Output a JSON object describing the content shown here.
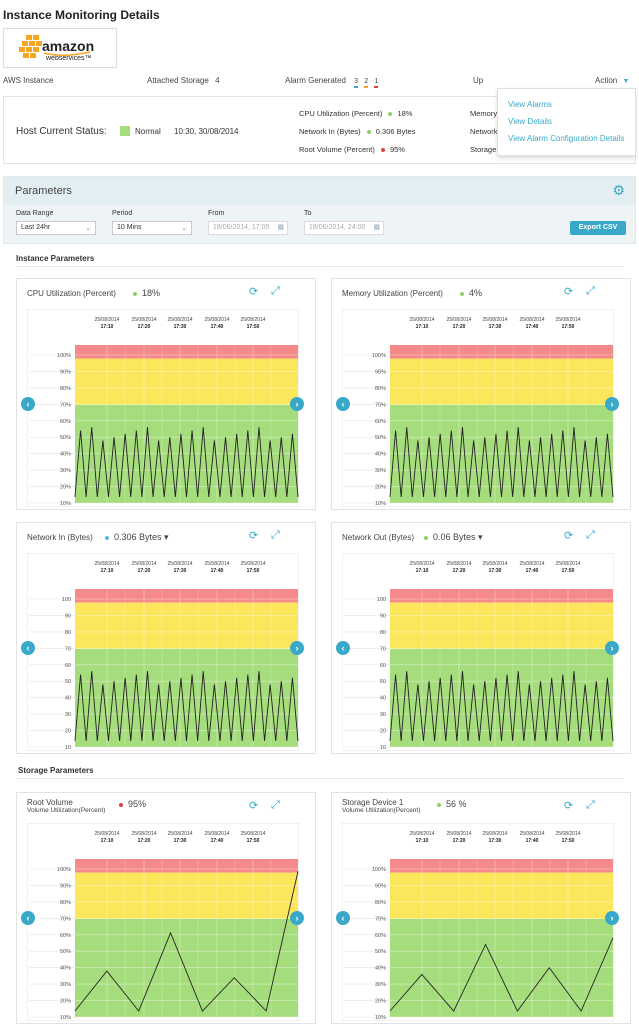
{
  "page_title": "Instance Monitoring Details",
  "logo": {
    "line1": "amazon",
    "line2": "webservices™"
  },
  "info": {
    "instance": "AWS Instance",
    "storage_label": "Attached Storage",
    "storage_count": "4",
    "alarm_label": "Alarm Generated",
    "alarm_counts": [
      "3",
      "2",
      "1"
    ],
    "alarm_colors": [
      "#3aa9c9",
      "#f0a030",
      "#e04040"
    ],
    "up": "Up",
    "action": "Action"
  },
  "action_menu": [
    "View Alarms",
    "View Details",
    "View Alarm Configuration Details"
  ],
  "status": {
    "label": "Host Current Status:",
    "state": "Normal",
    "state_color": "#8fe07a",
    "time": "10:30, 30/08/2014",
    "metrics": [
      {
        "name": "CPU Utilization (Percent)",
        "value": "18%",
        "color": "#8fd16a"
      },
      {
        "name": "Network In (Bytes)",
        "value": "0.306 Bytes",
        "color": "#8fd16a"
      },
      {
        "name": "Root Volume (Percent)",
        "value": "95%",
        "color": "#e04040"
      }
    ],
    "metrics2": [
      "Memory",
      "Network",
      "Storage"
    ]
  },
  "parameters": {
    "title": "Parameters",
    "date_range_label": "Data Range",
    "date_range_value": "Last 24hr",
    "period_label": "Period",
    "period_value": "10 Mins",
    "from_label": "From",
    "from_value": "18/06/2014, 17:05",
    "to_label": "To",
    "to_value": "18/06/2014, 24:00",
    "export_label": "Export CSV"
  },
  "instance_section": "Instance Parameters",
  "storage_section": "Storage Parameters",
  "time_labels": [
    {
      "date": "25/08/2014",
      "time": "17:10"
    },
    {
      "date": "25/08/2014",
      "time": "17:20"
    },
    {
      "date": "25/08/2014",
      "time": "17:30"
    },
    {
      "date": "25/08/2014",
      "time": "17:40"
    },
    {
      "date": "25/08/2014",
      "time": "17:50"
    }
  ],
  "zone_colors": {
    "red": "#f48a8a",
    "yellow": "#fbe65c",
    "green": "#a6dd7c"
  },
  "panels": [
    {
      "title": "CPU Utilization (Percent)",
      "subtitle": "",
      "value": "18%",
      "dropdown": false,
      "dot": "#8fd16a",
      "ylabels": [
        "100%",
        "90%",
        "80%",
        "70%",
        "60%",
        "50%",
        "40%",
        "30%",
        "20%",
        "10%"
      ],
      "pattern": "zig"
    },
    {
      "title": "Memory Utilization (Percent)",
      "subtitle": "",
      "value": "4%",
      "dropdown": false,
      "dot": "#8fd16a",
      "ylabels": [
        "100%",
        "90%",
        "80%",
        "70%",
        "60%",
        "50%",
        "40%",
        "30%",
        "20%",
        "10%"
      ],
      "pattern": "zig"
    },
    {
      "title": "Network In (Bytes)",
      "subtitle": "",
      "value": "0.306 Bytes",
      "dropdown": true,
      "dot": "#5ab8e0",
      "ylabels": [
        "100",
        "90",
        "80",
        "70",
        "60",
        "50",
        "40",
        "30",
        "20",
        "10"
      ],
      "pattern": "zig"
    },
    {
      "title": "Network Out (Bytes)",
      "subtitle": "",
      "value": "0.06 Bytes",
      "dropdown": true,
      "dot": "#8fd16a",
      "ylabels": [
        "100",
        "90",
        "80",
        "70",
        "60",
        "50",
        "40",
        "30",
        "20",
        "10"
      ],
      "pattern": "zig"
    },
    {
      "title": "Root Volume",
      "subtitle": "Volume Utilization(Percent)",
      "value": "95%",
      "dropdown": false,
      "dot": "#e04040",
      "ylabels": [
        "100%",
        "90%",
        "80%",
        "70%",
        "60%",
        "50%",
        "40%",
        "30%",
        "20%",
        "10%"
      ],
      "pattern": "peaks"
    },
    {
      "title": "Storage Device 1",
      "subtitle": "Volume Utilization(Percent)",
      "value": "56 %",
      "dropdown": false,
      "dot": "#8fd16a",
      "ylabels": [
        "100%",
        "90%",
        "80%",
        "70%",
        "60%",
        "50%",
        "40%",
        "30%",
        "20%",
        "10%"
      ],
      "pattern": "peaks"
    }
  ]
}
